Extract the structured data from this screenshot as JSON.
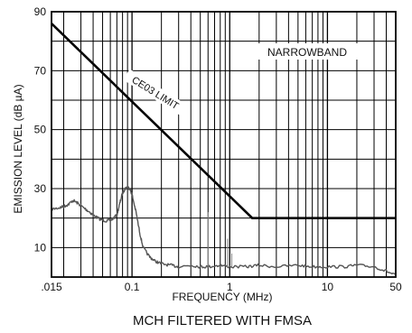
{
  "chart_data": {
    "type": "line",
    "title": "MCH FILTERED WITH FMSA",
    "xlabel": "FREQUENCY (MHz)",
    "ylabel": "EMISSION LEVEL (dB µA)",
    "x_scale": "log",
    "xlim": [
      0.015,
      50
    ],
    "ylim": [
      0,
      90
    ],
    "grid": true,
    "x_tick_labels": [
      {
        "value": 0.015,
        "label": ".015"
      },
      {
        "value": 0.1,
        "label": "0.1"
      },
      {
        "value": 1,
        "label": "1"
      },
      {
        "value": 10,
        "label": "10"
      },
      {
        "value": 50,
        "label": "50"
      }
    ],
    "y_tick_labels": [
      {
        "value": 90,
        "label": "90"
      },
      {
        "value": 70,
        "label": "70"
      },
      {
        "value": 50,
        "label": "50"
      },
      {
        "value": 30,
        "label": "30"
      },
      {
        "value": 10,
        "label": "10"
      }
    ],
    "annotations": [
      {
        "text": "NARROWBAND",
        "x": 10,
        "y": 75
      },
      {
        "text": "CE03 LIMIT",
        "x": 0.14,
        "y": 57
      }
    ],
    "series": [
      {
        "name": "CE03 LIMIT",
        "x": [
          0.015,
          1.7,
          50
        ],
        "y": [
          86,
          20,
          20
        ]
      },
      {
        "x": [
          0.015,
          0.018,
          0.02,
          0.022,
          0.025,
          0.028,
          0.032,
          0.037,
          0.042,
          0.048,
          0.055,
          0.062,
          0.07,
          0.075,
          0.08,
          0.085,
          0.09,
          0.095,
          0.1,
          0.11,
          0.12,
          0.13,
          0.15,
          0.17,
          0.2,
          0.25,
          0.3,
          0.4,
          0.5,
          0.6,
          0.8,
          1,
          1.5,
          2,
          3,
          5,
          7,
          10,
          15,
          20,
          30,
          40,
          50
        ],
        "y": [
          23,
          23.5,
          24,
          24.5,
          26,
          25,
          23.5,
          22,
          20.5,
          19.5,
          19,
          19.5,
          21,
          25,
          28.5,
          30,
          30.5,
          30,
          28,
          22,
          15,
          10,
          7,
          5.5,
          4.5,
          4,
          3.5,
          4,
          3.5,
          3.5,
          4,
          3.5,
          3.5,
          4,
          3.5,
          4,
          3.5,
          3.5,
          3.5,
          4,
          3.5,
          2,
          0.5
        ]
      }
    ]
  }
}
